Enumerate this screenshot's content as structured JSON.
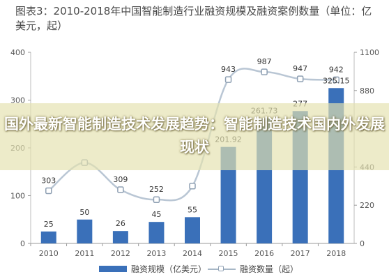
{
  "title": "图表3：2010-2018年中国智能制造行业融资规模及融资案例数量（单位：亿美元，起）",
  "banner": "国外最新智能制造技术发展趋势：智能制造技术国内外发展现状",
  "legend": {
    "bar": "融资规模（亿美元）",
    "line": "融资数量（起）"
  },
  "colors": {
    "bar": "#3a70b9",
    "line": "#b9c6d4",
    "marker": "#8fa0b3"
  },
  "chart_data": {
    "type": "bar",
    "categories": [
      "2010",
      "2011",
      "2012",
      "2013",
      "2014",
      "2015",
      "2016",
      "2017",
      "2018"
    ],
    "series": [
      {
        "name": "融资规模（亿美元）",
        "type": "bar",
        "axis": "left",
        "values": [
          25,
          50,
          26,
          45,
          55,
          201.92,
          261.73,
          277,
          325.15
        ],
        "labels": [
          "25",
          "50",
          "26",
          "45",
          "55",
          "201.92",
          "261.73",
          "277",
          "325.15"
        ]
      },
      {
        "name": "融资数量（起）",
        "type": "line",
        "axis": "right",
        "values": [
          303,
          465,
          309,
          252,
          330,
          943,
          987,
          947,
          942
        ],
        "labels": [
          "303",
          "",
          "309",
          "252",
          "",
          "943",
          "987",
          "947",
          "942"
        ]
      }
    ],
    "y_left": {
      "ylim": [
        0,
        400
      ],
      "ticks": [
        0,
        100,
        200,
        300,
        400
      ]
    },
    "y_right": {
      "ylim": [
        0,
        1100
      ],
      "ticks": [
        0,
        220,
        440,
        660,
        880,
        1100
      ]
    },
    "grid": false,
    "legend_position": "bottom"
  }
}
